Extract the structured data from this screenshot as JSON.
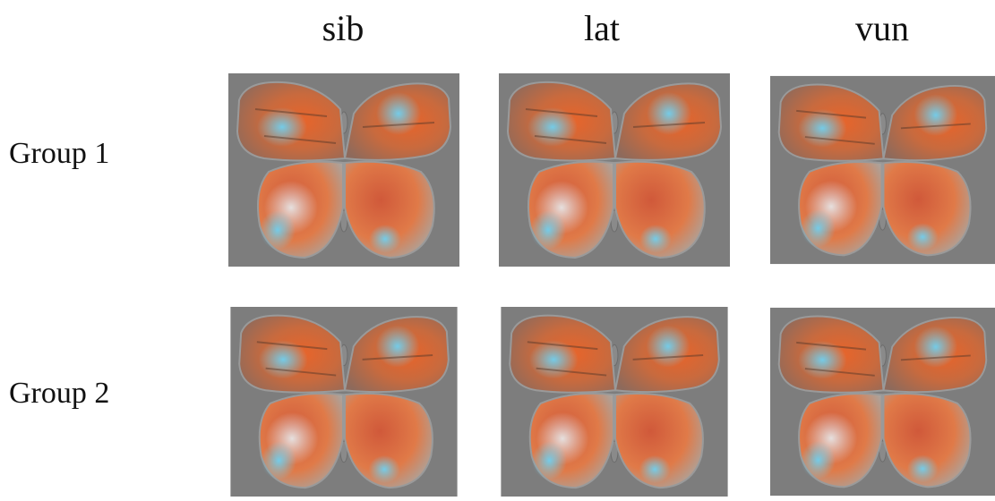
{
  "figure": {
    "columns": [
      "sib",
      "lat",
      "vun"
    ],
    "rows": [
      "Group 1",
      "Group 2"
    ]
  }
}
